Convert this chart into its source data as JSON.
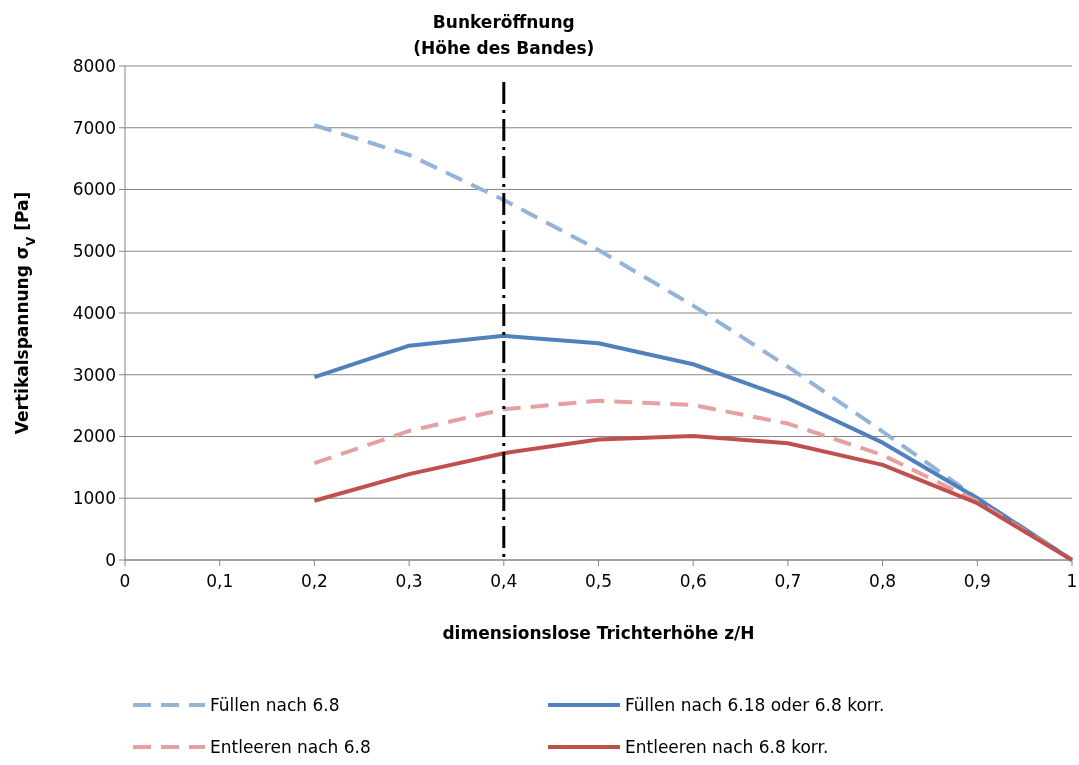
{
  "chart_data": {
    "type": "line",
    "xlabel": "dimensionslose Trichterhöhe z/H",
    "ylabel": "Vertikalspannung σ$_{V}$ [Pa]",
    "x": [
      0.2,
      0.3,
      0.4,
      0.5,
      0.6,
      0.7,
      0.8,
      0.9,
      1
    ],
    "xlim": [
      0,
      1
    ],
    "xticks": [
      0,
      {
        "value": 0.1,
        "label": "0,1"
      },
      {
        "value": 0.2,
        "label": "0,2"
      },
      {
        "value": 0.3,
        "label": "0,3"
      },
      {
        "value": 0.4,
        "label": "0,4"
      },
      {
        "value": 0.5,
        "label": "0,5"
      },
      {
        "value": 0.6,
        "label": "0,6"
      },
      {
        "value": 0.7,
        "label": "0,7"
      },
      {
        "value": 0.8,
        "label": "0,8"
      },
      {
        "value": 0.9,
        "label": "0,9"
      },
      1
    ],
    "ylim": [
      0,
      8000
    ],
    "yticks": [
      0,
      1000,
      2000,
      3000,
      4000,
      5000,
      6000,
      7000,
      8000
    ],
    "grid": "y",
    "legend": "bottom",
    "marker": "none",
    "ref_lines": [
      {
        "axis": "x",
        "value": 0.4,
        "label": "Bunkeröffnung\n(Höhe des Bandes)",
        "color": "#000000"
      }
    ],
    "series": [
      {
        "name": "Füllen nach 6.8",
        "color": "#95b3d7",
        "line_style": "dashed",
        "values": [
          7040,
          6560,
          5830,
          5020,
          4120,
          3130,
          2080,
          1000,
          0
        ]
      },
      {
        "name": "Füllen nach 6.18 oder 6.8 korr.",
        "color": "#4f81bd",
        "line_style": "solid",
        "values": [
          2960,
          3470,
          3630,
          3510,
          3170,
          2620,
          1900,
          1000,
          0
        ]
      },
      {
        "name": "Entleeren nach 6.8",
        "color": "#e6a0a0",
        "line_style": "dashed",
        "values": [
          1570,
          2090,
          2440,
          2580,
          2510,
          2210,
          1700,
          950,
          0
        ]
      },
      {
        "name": "Entleeren nach 6.8 korr.",
        "color": "#c0504d",
        "line_style": "solid",
        "values": [
          960,
          1390,
          1730,
          1950,
          2010,
          1890,
          1540,
          920,
          0
        ]
      }
    ]
  }
}
